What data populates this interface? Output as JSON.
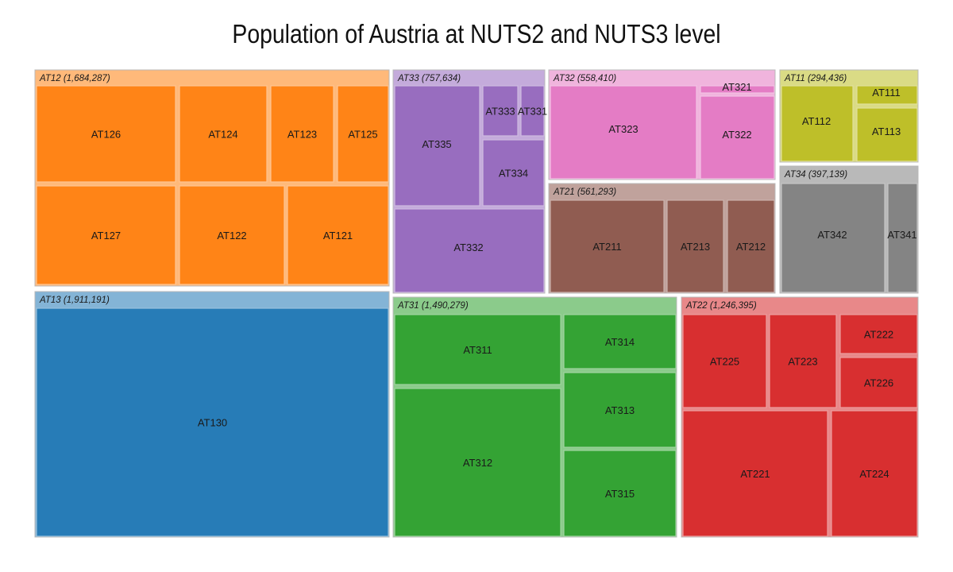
{
  "chart_data": {
    "type": "treemap",
    "title": "Population of Austria at NUTS2 and NUTS3 level",
    "groups": [
      {
        "name": "AT12",
        "label": "AT12 (1,684,287)",
        "value": 1684287,
        "color": "#ff7f0e",
        "children": [
          "AT126",
          "AT124",
          "AT123",
          "AT125",
          "AT127",
          "AT122",
          "AT121"
        ]
      },
      {
        "name": "AT13",
        "label": "AT13 (1,911,191)",
        "value": 1911191,
        "color": "#1f77b4",
        "children": [
          "AT130"
        ]
      },
      {
        "name": "AT33",
        "label": "AT33 (757,634)",
        "value": 757634,
        "color": "#9467bd",
        "children": [
          "AT335",
          "AT333",
          "AT331",
          "AT334",
          "AT332"
        ]
      },
      {
        "name": "AT32",
        "label": "AT32 (558,410)",
        "value": 558410,
        "color": "#e377c2",
        "children": [
          "AT323",
          "AT321",
          "AT322"
        ]
      },
      {
        "name": "AT21",
        "label": "AT21 (561,293)",
        "value": 561293,
        "color": "#8c564b",
        "children": [
          "AT211",
          "AT213",
          "AT212"
        ]
      },
      {
        "name": "AT11",
        "label": "AT11 (294,436)",
        "value": 294436,
        "color": "#bcbd22",
        "children": [
          "AT112",
          "AT111",
          "AT113"
        ]
      },
      {
        "name": "AT34",
        "label": "AT34 (397,139)",
        "value": 397139,
        "color": "#7f7f7f",
        "children": [
          "AT342",
          "AT341"
        ]
      },
      {
        "name": "AT31",
        "label": "AT31 (1,490,279)",
        "value": 1490279,
        "color": "#2ca02c",
        "children": [
          "AT311",
          "AT314",
          "AT313",
          "AT312",
          "AT315"
        ]
      },
      {
        "name": "AT22",
        "label": "AT22 (1,246,395)",
        "value": 1246395,
        "color": "#d62728",
        "children": [
          "AT225",
          "AT223",
          "AT222",
          "AT226",
          "AT221",
          "AT224"
        ]
      }
    ]
  }
}
